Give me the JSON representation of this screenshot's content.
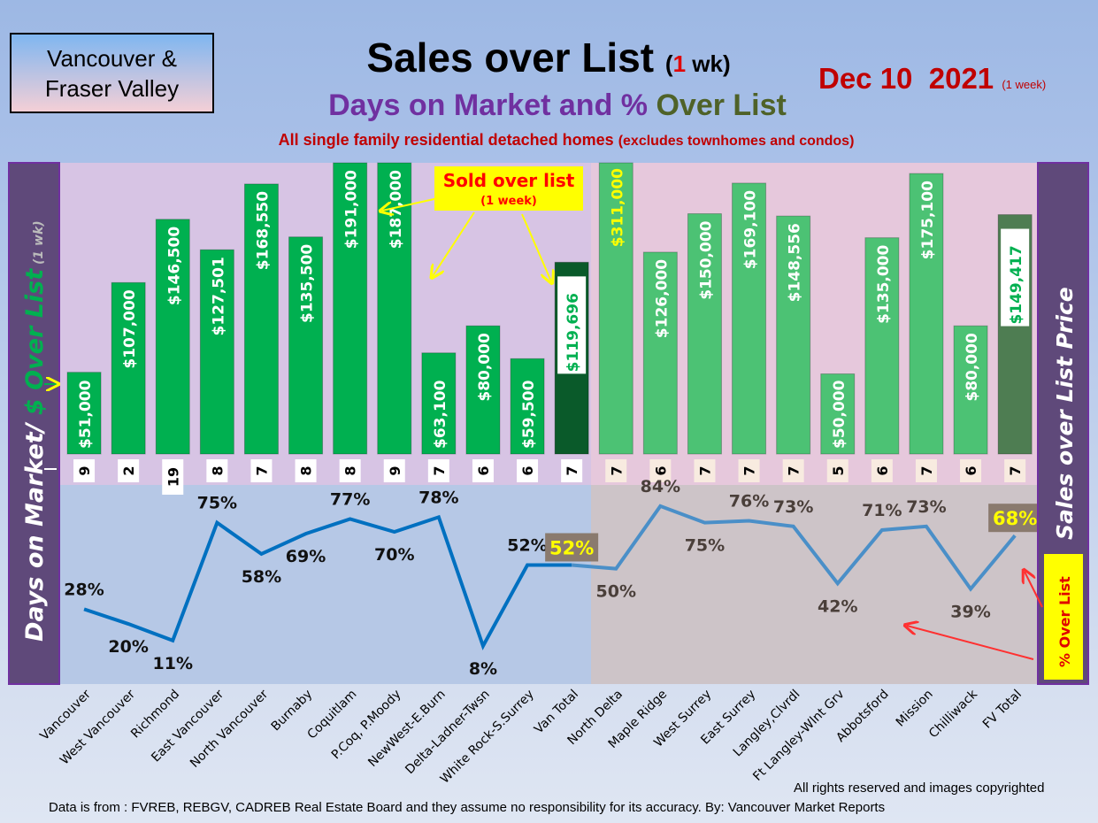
{
  "header": {
    "logo_line1": "Vancouver &",
    "logo_line2": "Fraser Valley",
    "title": "Sales over List",
    "title_paren_open": "(",
    "title_num": "1",
    "title_paren_close": " wk)",
    "date": "Dec 10  2021",
    "date_note": "(1 week)",
    "subtitle_a": "Days on Market and % ",
    "subtitle_b": "Over List",
    "note": "All single family residential detached homes ",
    "note_small": "(excludes townhomes and condos)"
  },
  "footer": {
    "rights": "All rights reserved and  images copyrighted",
    "source": "Data is from : FVREB, REBGV, CADREB Real Estate Board and they assume no responsibility for its accuracy. By: Vancouver Market Reports"
  },
  "chart_data": {
    "type": "bar",
    "title": "Sales over List (1 wk)",
    "left_axis_label_a": "Days on Market/ ",
    "left_axis_label_b": "$ Over List",
    "left_axis_label_c": " (1 wk)",
    "right_axis_label": "Sales over List Price",
    "pct_box_label": "% Over List",
    "callout": "Sold over list",
    "callout_sub": "(1 week)",
    "categories": [
      "Vancouver",
      "West Vancouver",
      "Richmond",
      "East Vancouver",
      "North Vancouver",
      "Burnaby",
      "Coquitlam",
      "P.Coq, P.Moody",
      "NewWest-E.Burn",
      "Delta-Ladner-Twsn",
      "White Rock-S.Surrey",
      "Van Total",
      "North Delta",
      "Maple Ridge",
      "West Surrey",
      "East Surrey",
      "Langley,Clvrdl",
      "Ft Langley-Wlnt Grv",
      "Abbotsford",
      "Mission",
      "Chilliwack",
      "FV Total"
    ],
    "series": [
      {
        "name": "$ Over List",
        "values": [
          51000,
          107000,
          146500,
          127501,
          168550,
          135500,
          191000,
          187000,
          63100,
          80000,
          59500,
          119696,
          311000,
          126000,
          150000,
          169100,
          148556,
          50000,
          135000,
          175100,
          80000,
          149417
        ],
        "labels": [
          "$51,000",
          "$107,000",
          "$146,500",
          "$127,501",
          "$168,550",
          "$135,500",
          "$191,000",
          "$187,000",
          "$63,100",
          "$80,000",
          "$59,500",
          "$119,696",
          "$311,000",
          "$126,000",
          "$150,000",
          "$169,100",
          "$148,556",
          "$50,000",
          "$135,000",
          "$175,100",
          "$80,000",
          "$149,417"
        ]
      },
      {
        "name": "Days on Market",
        "values": [
          9,
          2,
          19,
          8,
          7,
          8,
          8,
          9,
          7,
          6,
          6,
          7,
          7,
          6,
          7,
          7,
          7,
          5,
          6,
          7,
          6,
          7
        ]
      },
      {
        "name": "% Over List",
        "values": [
          28,
          20,
          11,
          75,
          58,
          69,
          77,
          70,
          78,
          8,
          52,
          52,
          50,
          84,
          75,
          76,
          73,
          42,
          71,
          73,
          39,
          68
        ],
        "label_side": [
          "above",
          "below",
          "below",
          "above",
          "below",
          "below",
          "above",
          "below",
          "above",
          "below",
          "above",
          "above",
          "below",
          "above",
          "below",
          "above",
          "above",
          "below",
          "above",
          "above",
          "below",
          "above"
        ]
      }
    ],
    "colors": {
      "van_bar": "#00b050",
      "van_total": "#0a5a2a",
      "fv_bar": "#4cc274",
      "fv_total": "#4e7d52",
      "van_line": "#0070c0",
      "fv_line": "#4a8fc8",
      "panel": "#5f497a"
    }
  }
}
